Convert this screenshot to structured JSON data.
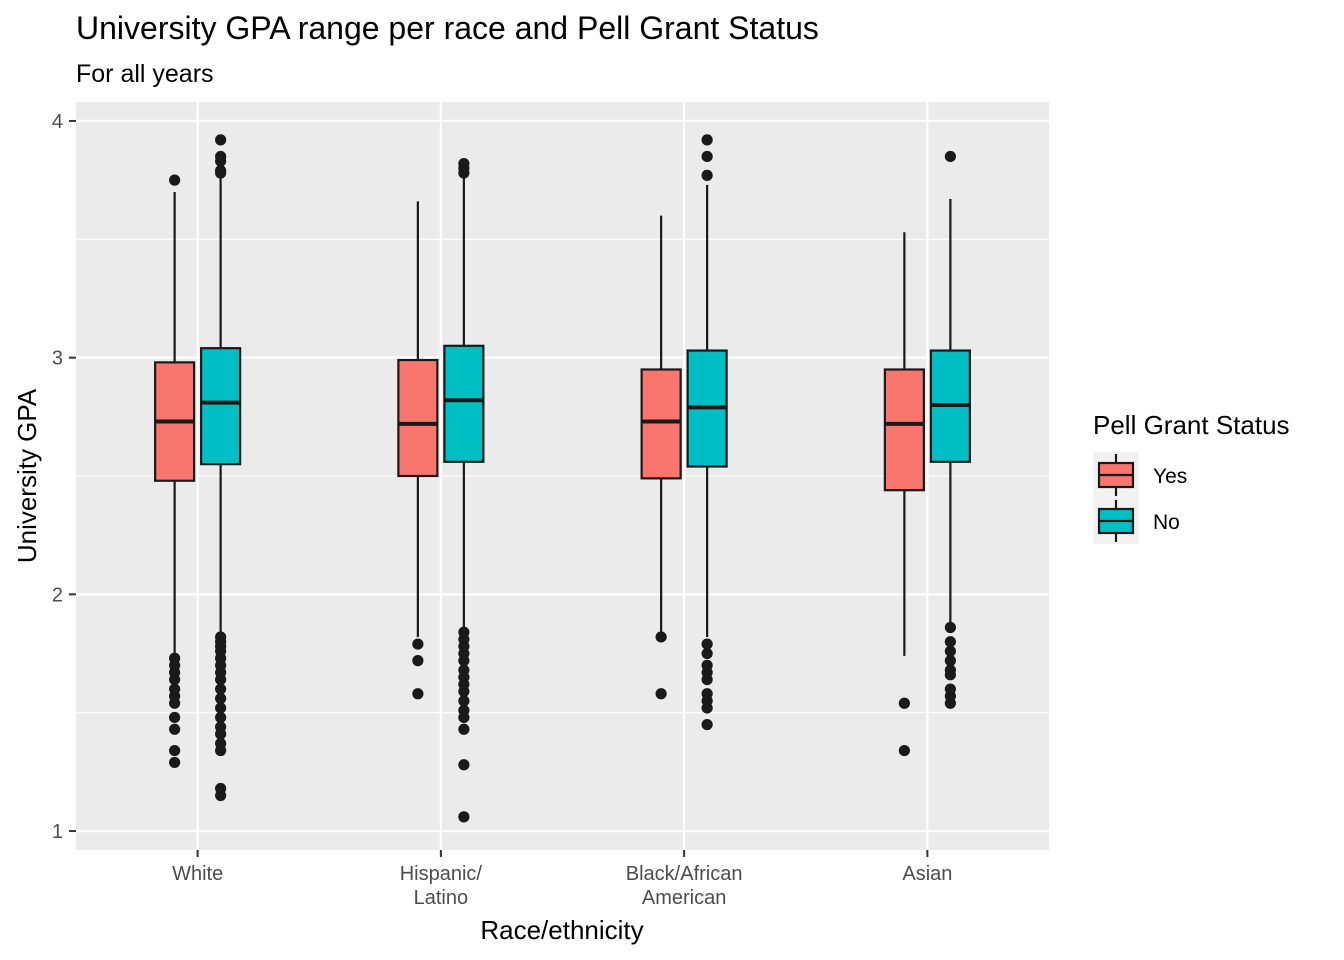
{
  "chart_data": {
    "type": "boxplot",
    "title": "University GPA range per race and Pell Grant Status",
    "subtitle": "For all years",
    "xlabel": "Race/ethnicity",
    "ylabel": "University GPA",
    "ylim": [
      0.92,
      4.08
    ],
    "yticks": [
      "1",
      "2",
      "3",
      "4"
    ],
    "grid": true,
    "legend_position": "right",
    "categories": [
      [
        "White"
      ],
      [
        "Hispanic/",
        "Latino"
      ],
      [
        "Black/African",
        "American"
      ],
      [
        "Asian"
      ]
    ],
    "legend": {
      "title": "Pell Grant Status",
      "entries": [
        {
          "label": "Yes",
          "color": "#F8766D"
        },
        {
          "label": "No",
          "color": "#00BFC4"
        }
      ]
    },
    "series": [
      {
        "name": "Yes",
        "color": "#F8766D",
        "boxes": [
          {
            "lower_whisker": 1.74,
            "q1": 2.48,
            "median": 2.73,
            "q3": 2.98,
            "upper_whisker": 3.7,
            "outliers": [
              3.75,
              1.73,
              1.7,
              1.67,
              1.64,
              1.6,
              1.57,
              1.54,
              1.48,
              1.43,
              1.34,
              1.29
            ]
          },
          {
            "lower_whisker": 1.82,
            "q1": 2.5,
            "median": 2.72,
            "q3": 2.99,
            "upper_whisker": 3.66,
            "outliers": [
              1.79,
              1.72,
              1.58
            ]
          },
          {
            "lower_whisker": 1.84,
            "q1": 2.49,
            "median": 2.73,
            "q3": 2.95,
            "upper_whisker": 3.6,
            "outliers": [
              1.82,
              1.58
            ]
          },
          {
            "lower_whisker": 1.74,
            "q1": 2.44,
            "median": 2.72,
            "q3": 2.95,
            "upper_whisker": 3.53,
            "outliers": [
              1.54,
              1.34
            ]
          }
        ]
      },
      {
        "name": "No",
        "color": "#00BFC4",
        "boxes": [
          {
            "lower_whisker": 1.83,
            "q1": 2.55,
            "median": 2.81,
            "q3": 3.04,
            "upper_whisker": 3.77,
            "outliers": [
              3.92,
              3.85,
              3.83,
              3.79,
              3.78,
              1.82,
              1.8,
              1.78,
              1.76,
              1.73,
              1.7,
              1.67,
              1.64,
              1.6,
              1.56,
              1.52,
              1.48,
              1.44,
              1.41,
              1.37,
              1.34,
              1.18,
              1.15
            ]
          },
          {
            "lower_whisker": 1.85,
            "q1": 2.56,
            "median": 2.82,
            "q3": 3.05,
            "upper_whisker": 3.76,
            "outliers": [
              3.82,
              3.8,
              3.78,
              1.84,
              1.81,
              1.78,
              1.75,
              1.72,
              1.68,
              1.65,
              1.62,
              1.59,
              1.55,
              1.51,
              1.48,
              1.43,
              1.28,
              1.06
            ]
          },
          {
            "lower_whisker": 1.82,
            "q1": 2.54,
            "median": 2.79,
            "q3": 3.03,
            "upper_whisker": 3.73,
            "outliers": [
              3.92,
              3.85,
              3.77,
              1.79,
              1.75,
              1.7,
              1.67,
              1.64,
              1.58,
              1.55,
              1.52,
              1.45
            ]
          },
          {
            "lower_whisker": 1.88,
            "q1": 2.56,
            "median": 2.8,
            "q3": 3.03,
            "upper_whisker": 3.67,
            "outliers": [
              3.85,
              1.86,
              1.8,
              1.76,
              1.72,
              1.68,
              1.66,
              1.6,
              1.57,
              1.54
            ]
          }
        ]
      }
    ]
  }
}
